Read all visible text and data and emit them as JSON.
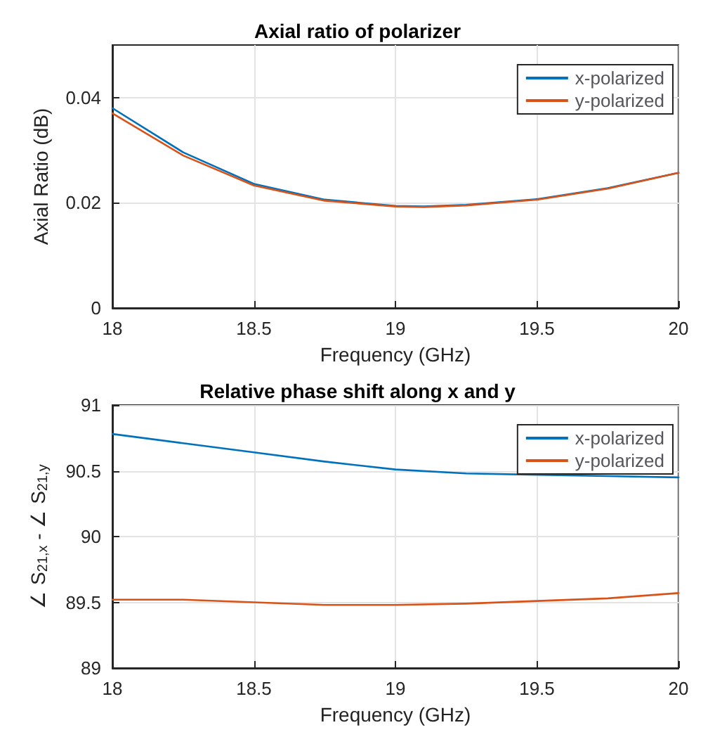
{
  "chart_data": [
    {
      "type": "line",
      "title": "Axial ratio of polarizer",
      "xlabel": "Frequency (GHz)",
      "ylabel": "Axial Ratio (dB)",
      "x": [
        18,
        18.25,
        18.5,
        18.75,
        19,
        19.1,
        19.25,
        19.5,
        19.75,
        20
      ],
      "series": [
        {
          "name": "x-polarized",
          "color": "#0072bd",
          "values": [
            0.038,
            0.0296,
            0.0236,
            0.0206,
            0.0194,
            0.0193,
            0.0196,
            0.0207,
            0.0228,
            0.0257
          ]
        },
        {
          "name": "y-polarized",
          "color": "#d95319",
          "values": [
            0.037,
            0.029,
            0.0233,
            0.0204,
            0.0193,
            0.0192,
            0.0195,
            0.0206,
            0.0227,
            0.0257
          ]
        }
      ],
      "xlim": [
        18,
        20
      ],
      "xticks": [
        18,
        18.5,
        19,
        19.5,
        20
      ],
      "ylim": [
        0,
        0.05
      ],
      "yticks": [
        0,
        0.02,
        0.04
      ],
      "grid": true,
      "legend": "top right",
      "marker": "none",
      "line_style": "solid"
    },
    {
      "type": "line",
      "title": "Relative phase shift along x and y",
      "xlabel": "Frequency (GHz)",
      "ylabel": "∠ S$_{21,x}$ - ∠ S$_{21,y}$",
      "x": [
        18,
        18.25,
        18.5,
        18.75,
        19,
        19.25,
        19.5,
        19.75,
        20
      ],
      "series": [
        {
          "name": "x-polarized",
          "color": "#0072bd",
          "values": [
            90.78,
            90.71,
            90.64,
            90.57,
            90.51,
            90.48,
            90.47,
            90.46,
            90.45
          ]
        },
        {
          "name": "y-polarized",
          "color": "#d95319",
          "values": [
            89.52,
            89.52,
            89.5,
            89.48,
            89.48,
            89.49,
            89.51,
            89.53,
            89.57
          ]
        }
      ],
      "xlim": [
        18,
        20
      ],
      "xticks": [
        18,
        18.5,
        19,
        19.5,
        20
      ],
      "ylim": [
        89,
        91
      ],
      "yticks": [
        89,
        89.5,
        90,
        90.5,
        91
      ],
      "grid": true,
      "legend": "top right",
      "marker": "none",
      "line_style": "solid"
    }
  ]
}
